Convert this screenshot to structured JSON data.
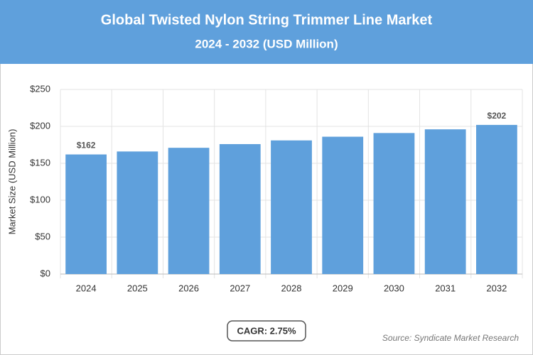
{
  "chart_data": {
    "type": "bar",
    "title": "Global Twisted Nylon String Trimmer Line Market",
    "subtitle": "2024 - 2032 (USD Million)",
    "y_label": "Market Size (USD Million)",
    "categories": [
      "2024",
      "2025",
      "2026",
      "2027",
      "2028",
      "2029",
      "2030",
      "2031",
      "2032"
    ],
    "values": [
      162,
      166,
      171,
      176,
      181,
      186,
      191,
      196,
      202
    ],
    "value_labels": [
      "$162",
      null,
      null,
      null,
      null,
      null,
      null,
      null,
      "$202"
    ],
    "color": "#5fa0dc",
    "ylim": [
      0,
      250
    ],
    "yticks": [
      {
        "value": 0,
        "label": "$0"
      },
      {
        "value": 50,
        "label": "$50"
      },
      {
        "value": 100,
        "label": "$100"
      },
      {
        "value": 150,
        "label": "$150"
      },
      {
        "value": 200,
        "label": "$200"
      },
      {
        "value": 250,
        "label": "$250"
      }
    ],
    "grid": true,
    "annotation": "CAGR: 2.75%",
    "source": "Source: Syndicate Market Research"
  }
}
